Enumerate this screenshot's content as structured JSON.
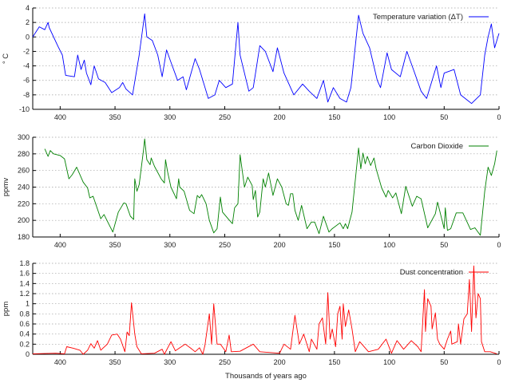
{
  "chart_data": [
    {
      "type": "line",
      "ylabel": "° C",
      "xlim": [
        425,
        0
      ],
      "ylim": [
        -10,
        4
      ],
      "yticks": [
        -10,
        -8,
        -6,
        -4,
        -2,
        0,
        2,
        4
      ],
      "xticks": [
        400,
        350,
        300,
        250,
        200,
        150,
        100,
        50,
        0
      ],
      "grid": true,
      "legend_position": "top-right",
      "color": "#0000ff",
      "series": [
        {
          "name": "Temperature variation (ΔT)",
          "x": [
            425,
            419,
            414,
            411,
            410,
            402,
            398,
            395,
            387,
            384,
            381,
            378,
            376,
            372,
            369,
            365,
            359,
            353,
            346,
            343,
            340,
            334,
            328,
            323,
            321,
            316,
            311,
            307,
            303,
            299,
            293,
            288,
            285,
            277,
            273,
            265,
            259,
            255,
            249,
            243,
            238,
            236,
            228,
            224,
            218,
            213,
            206,
            202,
            196,
            187,
            179,
            173,
            166,
            160,
            156,
            151,
            145,
            139,
            135,
            128,
            124,
            118,
            111,
            108,
            102,
            98,
            90,
            84,
            78,
            71,
            66,
            57,
            53,
            50,
            41,
            35,
            25,
            17,
            13,
            10,
            7,
            4,
            0
          ],
          "y": [
            0,
            1.4,
            1,
            2,
            1.3,
            -1.3,
            -2.5,
            -5.3,
            -5.5,
            -2.5,
            -4.5,
            -3.2,
            -5,
            -6.6,
            -4,
            -5.8,
            -6.3,
            -7.7,
            -7,
            -6.3,
            -7.2,
            -8,
            -2.5,
            3.2,
            0,
            -0.5,
            -2.5,
            -5.5,
            -1.8,
            -3.5,
            -6,
            -5.5,
            -7.3,
            -3,
            -4.5,
            -8.5,
            -8,
            -6,
            -7,
            -6.5,
            2,
            -2.5,
            -7.5,
            -7,
            -1.2,
            -2,
            -4.8,
            -1.5,
            -5,
            -8,
            -6.5,
            -7.5,
            -8.5,
            -6,
            -9,
            -7,
            -8.5,
            -9,
            -7,
            3,
            0.5,
            -1.5,
            -6,
            -7,
            -2.2,
            -4.5,
            -5.5,
            -2,
            -4.5,
            -7.5,
            -8.5,
            -4,
            -7,
            -5,
            -4.5,
            -8,
            -9.2,
            -8,
            -2.5,
            0,
            1.8,
            -1.5,
            0.5
          ]
        }
      ]
    },
    {
      "type": "line",
      "ylabel": "ppmv",
      "xlim": [
        425,
        0
      ],
      "ylim": [
        180,
        300
      ],
      "yticks": [
        180,
        200,
        220,
        240,
        260,
        280,
        300
      ],
      "xticks": [
        400,
        350,
        300,
        250,
        200,
        150,
        100,
        50,
        0
      ],
      "grid": true,
      "legend_position": "top-right",
      "color": "#008000",
      "series": [
        {
          "name": "Carbon Dioxide",
          "x": [
            414,
            411,
            409,
            406,
            400,
            396,
            392,
            389,
            385,
            379,
            375,
            373,
            370,
            363,
            360,
            352,
            347,
            342,
            340,
            336,
            333,
            332,
            330,
            328,
            324,
            323,
            321,
            318,
            317,
            314,
            308,
            305,
            304,
            302,
            299,
            294,
            292,
            291,
            287,
            282,
            278,
            275,
            273,
            271,
            267,
            264,
            260,
            257,
            254,
            252,
            247,
            243,
            241,
            238,
            236,
            232,
            229,
            225,
            224,
            222,
            220,
            218,
            215,
            213,
            210,
            206,
            202,
            198,
            194,
            192,
            190,
            188,
            186,
            183,
            180,
            175,
            171,
            168,
            164,
            160,
            155,
            152,
            145,
            142,
            140,
            138,
            134,
            128,
            126,
            124,
            122,
            120,
            117,
            114,
            112,
            107,
            103,
            101,
            97,
            94,
            89,
            85,
            79,
            75,
            71,
            65,
            58,
            56,
            50,
            49,
            47,
            44,
            39,
            33,
            26,
            22,
            17,
            13,
            10,
            7,
            4,
            2
          ],
          "y": [
            286,
            277,
            284,
            280,
            278,
            274,
            250,
            255,
            264,
            246,
            239,
            227,
            229,
            202,
            207,
            186,
            210,
            221,
            220,
            205,
            201,
            250,
            235,
            243,
            285,
            298,
            273,
            267,
            275,
            265,
            250,
            245,
            273,
            258,
            240,
            226,
            250,
            240,
            235,
            212,
            208,
            230,
            227,
            231,
            220,
            200,
            185,
            190,
            228,
            210,
            202,
            196,
            215,
            220,
            279,
            240,
            252,
            242,
            225,
            236,
            204,
            210,
            250,
            240,
            257,
            230,
            250,
            240,
            220,
            218,
            232,
            232,
            212,
            200,
            218,
            190,
            198,
            198,
            184,
            205,
            186,
            190,
            197,
            190,
            196,
            190,
            210,
            287,
            262,
            281,
            268,
            277,
            266,
            275,
            262,
            239,
            228,
            236,
            227,
            233,
            208,
            241,
            217,
            229,
            226,
            191,
            208,
            222,
            190,
            215,
            188,
            190,
            209,
            209,
            189,
            191,
            182,
            235,
            264,
            254,
            268,
            284
          ]
        }
      ]
    },
    {
      "type": "line",
      "ylabel": "ppm",
      "xlabel": "Thousands of years ago",
      "xlim": [
        425,
        0
      ],
      "ylim": [
        0,
        1.8
      ],
      "yticks": [
        0,
        0.2,
        0.4,
        0.6,
        0.8,
        1,
        1.2,
        1.4,
        1.6,
        1.8
      ],
      "xticks": [
        400,
        350,
        300,
        250,
        200,
        150,
        100,
        50,
        0
      ],
      "grid": true,
      "legend_position": "top-right",
      "color": "#ff0000",
      "series": [
        {
          "name": "Dust concentration",
          "x": [
            425,
            404,
            396,
            394,
            388,
            382,
            379,
            375,
            372,
            369,
            366,
            363,
            357,
            353,
            348,
            345,
            341,
            339,
            337,
            335,
            332,
            330,
            326,
            314,
            307,
            305,
            299,
            295,
            286,
            281,
            277,
            273,
            270,
            268,
            264,
            262,
            260,
            257,
            254,
            249,
            246,
            244,
            236,
            224,
            218,
            200,
            196,
            190,
            186,
            182,
            178,
            173,
            171,
            166,
            164,
            161,
            158,
            156,
            154,
            152,
            149,
            147,
            145,
            143,
            142,
            140,
            137,
            134,
            131,
            127,
            119,
            110,
            103,
            98,
            93,
            87,
            80,
            74,
            71,
            68,
            67,
            65,
            62,
            61,
            58,
            56,
            54,
            50,
            47,
            44,
            43,
            38,
            37,
            35,
            32,
            29,
            27,
            25,
            23,
            21,
            19,
            17,
            16,
            13,
            8,
            2
          ],
          "y": [
            0.01,
            0.02,
            0.01,
            0.15,
            0.12,
            0.08,
            0,
            0.08,
            0.21,
            0.12,
            0.27,
            0.08,
            0.2,
            0.38,
            0.4,
            0.3,
            0.05,
            0.44,
            0.37,
            1.02,
            0.4,
            0.15,
            0.01,
            0.02,
            0.1,
            0,
            0.25,
            0.07,
            0.2,
            0.12,
            0.05,
            0.13,
            0,
            0.18,
            0.8,
            0.2,
            1,
            0.2,
            0.2,
            0.05,
            0.38,
            0.05,
            0.06,
            0.2,
            0.05,
            0.02,
            0.2,
            0.1,
            0.77,
            0.2,
            0.4,
            0.05,
            0.3,
            0.1,
            0.6,
            0.72,
            0.2,
            1.22,
            0.3,
            0.5,
            0.15,
            0.8,
            0.95,
            0.3,
            1,
            0.55,
            0.88,
            0.5,
            0.05,
            0.25,
            0.05,
            0.1,
            0.3,
            0.02,
            0.27,
            0.1,
            0.27,
            0.15,
            0.05,
            1.28,
            0.45,
            1.1,
            0.95,
            0.5,
            0.82,
            0.3,
            0.2,
            0.1,
            0.3,
            0.46,
            0.2,
            0.25,
            0.6,
            0.2,
            0.7,
            0.8,
            1.48,
            0.45,
            1.75,
            0.72,
            1.2,
            1.1,
            0.25,
            0.05,
            0.05,
            0.01
          ]
        }
      ]
    }
  ]
}
